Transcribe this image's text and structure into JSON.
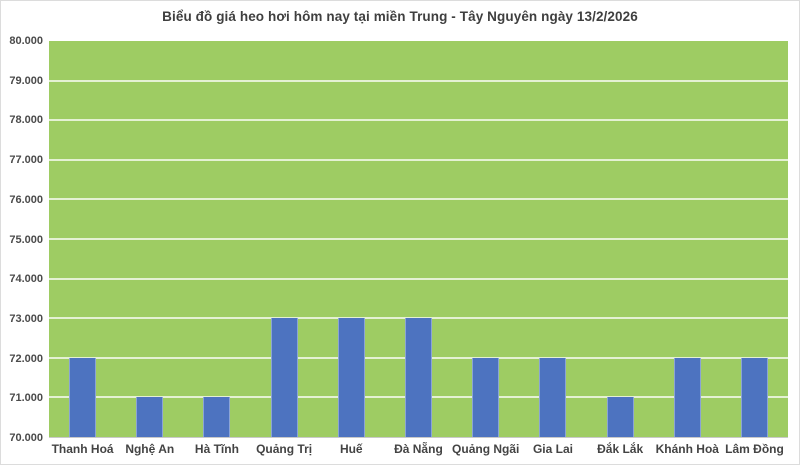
{
  "chart_data": {
    "type": "bar",
    "title": "Biểu đồ giá heo hơi hôm nay tại miền Trung - Tây Nguyên ngày 13/2/2026",
    "categories": [
      "Thanh Hoá",
      "Nghệ An",
      "Hà Tĩnh",
      "Quảng Trị",
      "Huế",
      "Đà Nẵng",
      "Quảng Ngãi",
      "Gia Lai",
      "Đắk Lắk",
      "Khánh Hoà",
      "Lâm Đồng"
    ],
    "values": [
      72000,
      71000,
      71000,
      73000,
      73000,
      73000,
      72000,
      72000,
      71000,
      72000,
      72000
    ],
    "y_tick_labels": [
      "80.000",
      "79.000",
      "78.000",
      "77.000",
      "76.000",
      "75.000",
      "74.000",
      "73.000",
      "72.000",
      "71.000",
      "70.000"
    ],
    "ylim": [
      70000,
      80000
    ],
    "y_step": 1000,
    "xlabel": "",
    "ylabel": "",
    "grid": true,
    "legend_position": "none",
    "colors": {
      "bar": "#4d73c0",
      "plot_background": "#9ecc63",
      "gridline": "rgba(255,255,255,0.72)",
      "title_text": "#3f3f3f",
      "axis_text": "#4a4a4a",
      "frame_border": "#dcdcdc"
    }
  }
}
